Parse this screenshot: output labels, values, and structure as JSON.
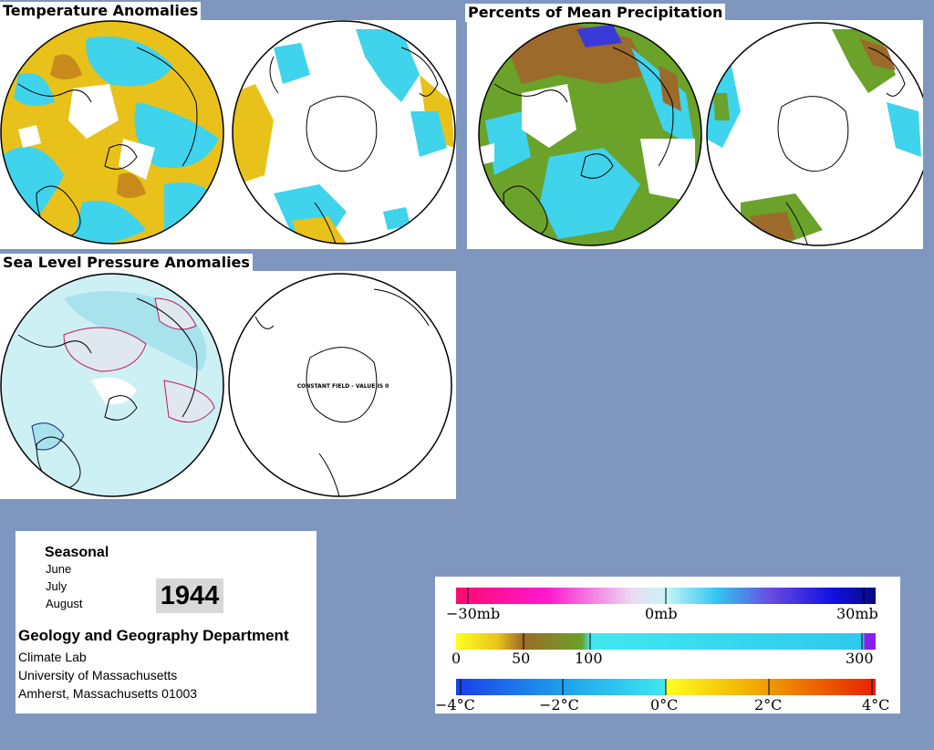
{
  "panels": {
    "temperature": {
      "title": "Temperature Anomalies"
    },
    "precipitation": {
      "title": "Percents of Mean Precipitation"
    },
    "pressure": {
      "title": "Sea Level Pressure Anomalies",
      "southern_note": "CONSTANT FIELD - VALUE IS 0"
    }
  },
  "info": {
    "season": "Seasonal",
    "months": [
      "June",
      "July",
      "August"
    ],
    "year": "1944",
    "department": "Geology and Geography Department",
    "address": [
      "Climate Lab",
      "University of Massachusetts",
      "Amherst, Massachusetts 01003"
    ]
  },
  "legends": {
    "pressure": {
      "labels": [
        "−30mb",
        "0mb",
        "30mb"
      ]
    },
    "precipitation": {
      "labels": [
        "0",
        "50",
        "100",
        "300"
      ]
    },
    "temperature": {
      "labels": [
        "−4°C",
        "−2°C",
        "0°C",
        "2°C",
        "4°C"
      ]
    }
  },
  "colors": {
    "background": "#7f97bf",
    "warm": "#e8c21a",
    "cool": "#3fd3ec",
    "dry_brown": "#9c6a2a",
    "wet_green": "#6aa22a",
    "pressure_fill": "#cdf0f4"
  }
}
